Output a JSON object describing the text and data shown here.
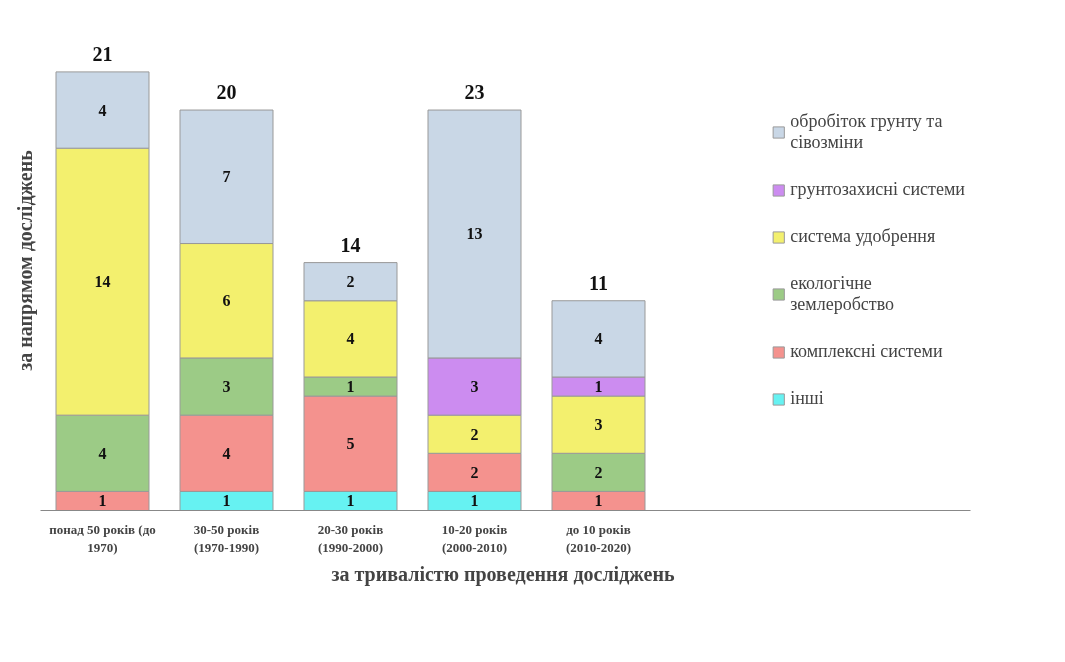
{
  "chart_data": {
    "type": "bar",
    "stacked": true,
    "data_labels": true,
    "legend": "right",
    "xlabel": "за тривалістю проведення  досліджень",
    "ylabel": "за напрямом досліджень",
    "categories": [
      "понад 50 років (до 1970)",
      "30-50 років (1970-1990)",
      "20-30 років (1990-2000)",
      "10-20 років (2000-2010)",
      "до 10 років (2010-2020)"
    ],
    "series": [
      {
        "name": "інші",
        "color": "#66f2f2",
        "values": [
          null,
          1,
          1,
          1,
          null
        ]
      },
      {
        "name": "комплексні системи",
        "color": "#f4928e",
        "values": [
          1,
          4,
          5,
          2,
          1
        ]
      },
      {
        "name": "екологічне землеробство",
        "color": "#9ccb86",
        "values": [
          4,
          3,
          1,
          null,
          2
        ]
      },
      {
        "name": "система удобрення",
        "color": "#f3f06e",
        "values": [
          14,
          6,
          4,
          2,
          3
        ]
      },
      {
        "name": "грунтозахисні системи",
        "color": "#cc8cf0",
        "values": [
          null,
          null,
          null,
          3,
          1
        ]
      },
      {
        "name": "обробіток грунту та сівозміни",
        "color": "#c9d7e6",
        "values": [
          4,
          7,
          2,
          13,
          4
        ]
      }
    ],
    "totals": [
      "21",
      "20",
      "14",
      "23",
      "11"
    ]
  }
}
